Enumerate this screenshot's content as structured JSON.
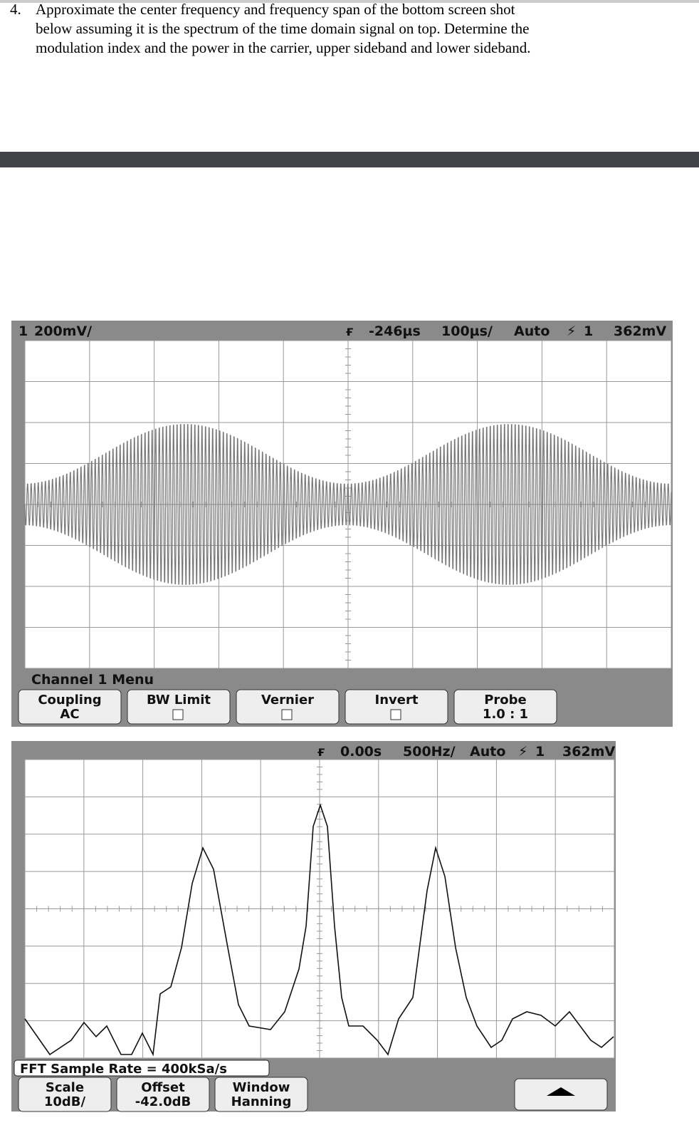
{
  "question": {
    "number": "4.",
    "lines": [
      "Approximate the center frequency and frequency span of the bottom screen shot",
      "below assuming it is the spectrum of the time domain signal on top.  Determine the",
      "modulation index and the power in the carrier, upper sideband and lower sideband."
    ]
  },
  "scope_top": {
    "channel": "1",
    "scale": "200mV/",
    "delay": "-246µs",
    "timebase": "100µs/",
    "mode": "Auto",
    "trigger_source": "1",
    "trigger_level": "362mV",
    "menu_title": "Channel 1 Menu",
    "softkeys": [
      {
        "label": "Coupling",
        "value": "AC"
      },
      {
        "label": "BW Limit"
      },
      {
        "label": "Vernier"
      },
      {
        "label": "Invert"
      },
      {
        "label": "Probe",
        "value": "1.0 : 1"
      }
    ]
  },
  "scope_bottom": {
    "center": "0.00s",
    "span": "500Hz/",
    "mode": "Auto",
    "trigger_source": "1",
    "trigger_level": "362mV",
    "status": "FFT Sample Rate = 400kSa/s",
    "softkeys": [
      {
        "label": "Scale",
        "value": "10dB/"
      },
      {
        "label": "Offset",
        "value": "-42.0dB"
      },
      {
        "label": "Window",
        "value": "Hanning"
      }
    ]
  }
}
